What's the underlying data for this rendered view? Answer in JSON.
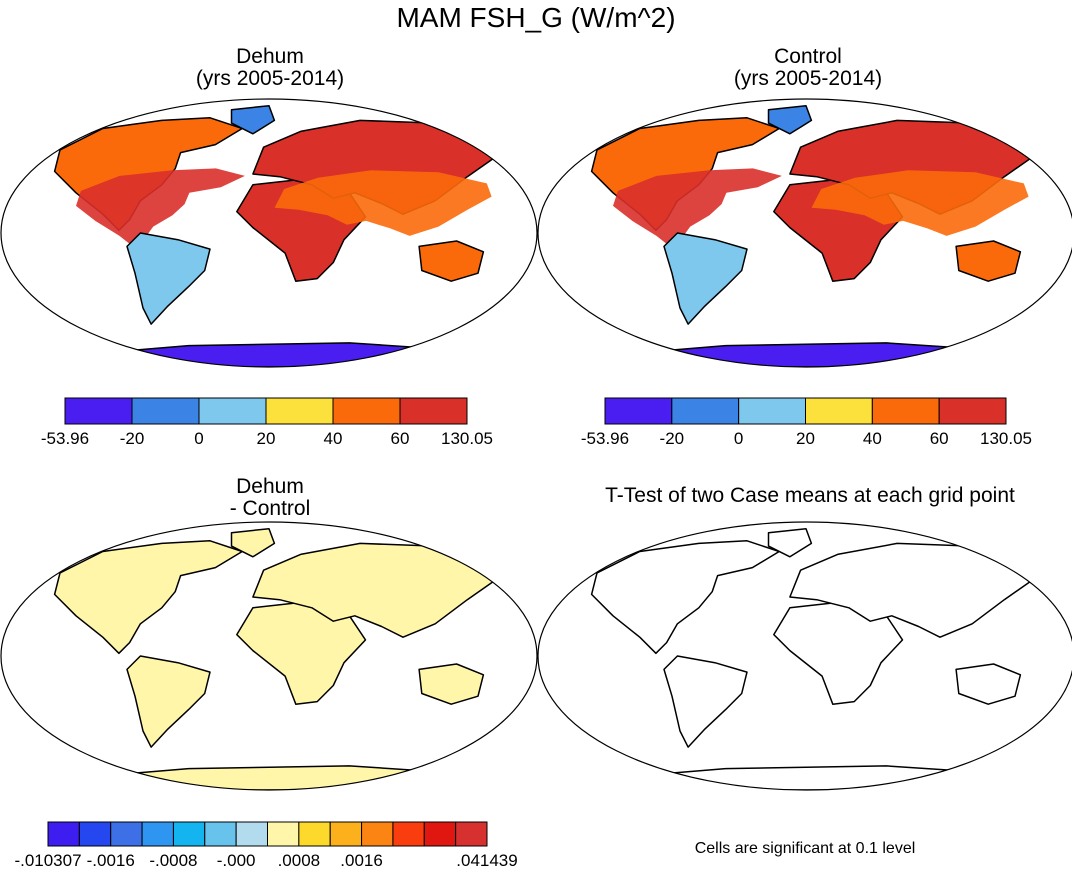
{
  "title": "MAM FSH_G (W/m^2)",
  "panels": [
    {
      "title_line1": "Dehum",
      "title_line2": "(yrs 2005-2014)"
    },
    {
      "title_line1": "Control",
      "title_line2": "(yrs 2005-2014)"
    },
    {
      "title_line1": "Dehum",
      "title_line2": "- Control"
    },
    {
      "title_line1": "T-Test of two Case means at each grid point",
      "title_line2": ""
    }
  ],
  "footnote": "Cells are significant at 0.1 level",
  "chart_data": [
    {
      "type": "heatmap",
      "title": "Dehum (yrs 2005-2014)",
      "colorbar": {
        "labels": [
          "-53.96",
          "-20",
          "0",
          "20",
          "40",
          "60",
          "130.05"
        ],
        "colors": [
          "#4a1ef0",
          "#3b84e6",
          "#7ec8ee",
          "#fce13c",
          "#fb6a0a",
          "#d9302a"
        ]
      }
    },
    {
      "type": "heatmap",
      "title": "Control (yrs 2005-2014)",
      "colorbar": {
        "labels": [
          "-53.96",
          "-20",
          "0",
          "20",
          "40",
          "60",
          "130.05"
        ],
        "colors": [
          "#4a1ef0",
          "#3b84e6",
          "#7ec8ee",
          "#fce13c",
          "#fb6a0a",
          "#d9302a"
        ]
      }
    },
    {
      "type": "heatmap",
      "title": "Dehum - Control",
      "colorbar": {
        "labels": [
          "-.010307",
          "-.0016",
          "-.0008",
          "-.000",
          ".0008",
          ".0016",
          ".041439"
        ],
        "colors": [
          "#3d1df0",
          "#2447f0",
          "#3d6fe6",
          "#2e96f0",
          "#13b4ef",
          "#68c3ec",
          "#b2dcee",
          "#fff6aa",
          "#fcd92b",
          "#fbb01c",
          "#fb8412",
          "#f93d0f",
          "#e01710",
          "#d7312f"
        ]
      }
    },
    {
      "type": "heatmap",
      "title": "T-Test of two Case means at each grid point",
      "colorbar": null
    }
  ]
}
